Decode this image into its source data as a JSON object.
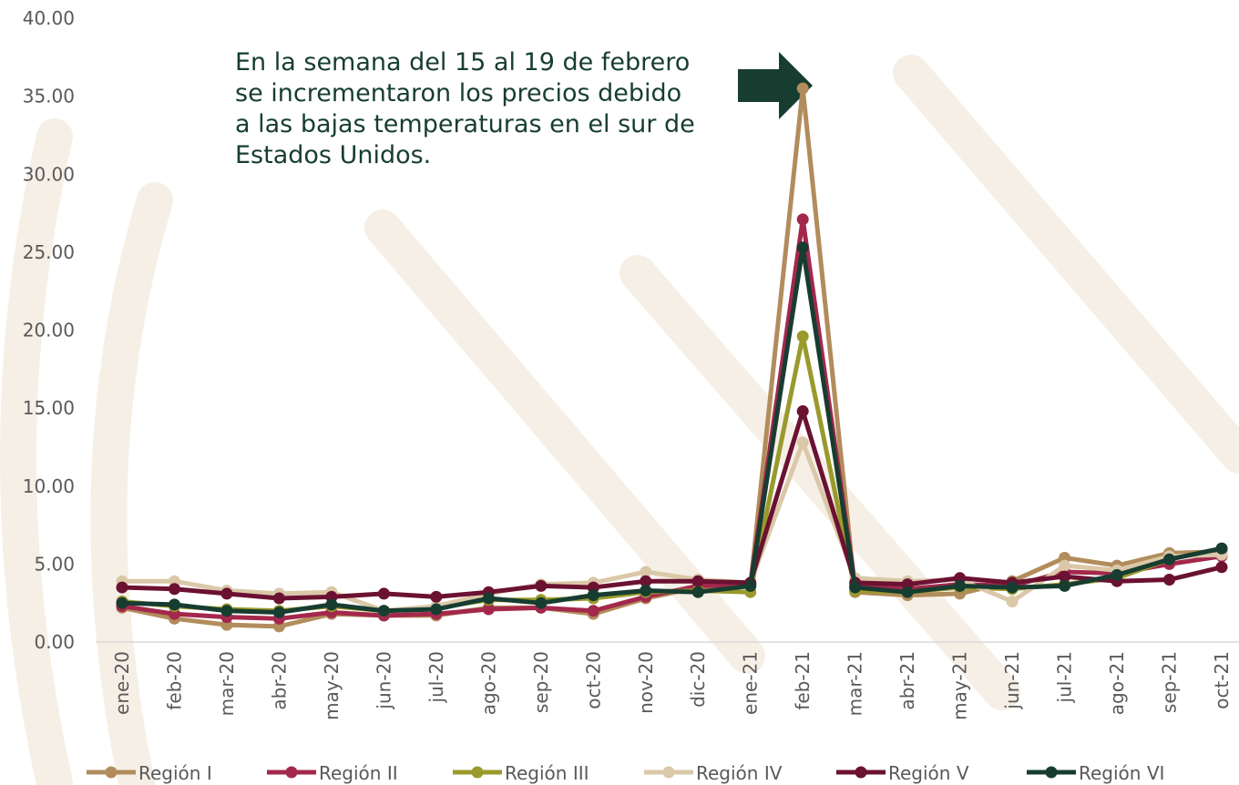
{
  "chart_data": {
    "type": "line",
    "annotation": [
      "En la semana del 15 al 19 de febrero",
      "se incrementaron los precios debido",
      "a las bajas temperaturas en el sur de",
      "Estados Unidos."
    ],
    "categories": [
      "ene-20",
      "feb-20",
      "mar-20",
      "abr-20",
      "may-20",
      "jun-20",
      "jul-20",
      "ago-20",
      "sep-20",
      "oct-20",
      "nov-20",
      "dic-20",
      "ene-21",
      "feb-21",
      "mar-21",
      "abr-21",
      "may-21",
      "jun-21",
      "jul-21",
      "ago-21",
      "sep-21",
      "oct-21"
    ],
    "series": [
      {
        "name": "Región I",
        "color": "#b28c5c",
        "values": [
          2.2,
          1.5,
          1.1,
          1.0,
          1.8,
          1.7,
          1.7,
          2.2,
          2.2,
          1.8,
          2.8,
          3.5,
          3.6,
          35.5,
          3.2,
          3.0,
          3.1,
          3.9,
          5.4,
          4.9,
          5.7,
          5.8
        ]
      },
      {
        "name": "Región II",
        "color": "#a3284c",
        "values": [
          2.3,
          1.8,
          1.6,
          1.5,
          1.9,
          1.7,
          1.8,
          2.1,
          2.2,
          2.0,
          2.9,
          3.6,
          3.7,
          27.1,
          3.6,
          3.4,
          3.7,
          3.6,
          4.5,
          4.4,
          5.0,
          5.5
        ]
      },
      {
        "name": "Región III",
        "color": "#9a9a2c",
        "values": [
          2.6,
          2.3,
          2.1,
          2.0,
          2.3,
          2.0,
          2.2,
          2.7,
          2.7,
          2.8,
          3.2,
          3.3,
          3.2,
          19.6,
          3.3,
          3.2,
          3.5,
          3.4,
          3.7,
          4.1,
          5.3,
          6.0
        ]
      },
      {
        "name": "Región IV",
        "color": "#dac8a8",
        "values": [
          3.9,
          3.9,
          3.3,
          3.1,
          3.2,
          2.0,
          2.3,
          3.1,
          3.7,
          3.8,
          4.5,
          4.0,
          3.8,
          12.8,
          4.1,
          3.9,
          4.0,
          2.6,
          4.9,
          4.6,
          5.5,
          5.6
        ]
      },
      {
        "name": "Región V",
        "color": "#6b1132",
        "values": [
          3.5,
          3.4,
          3.1,
          2.8,
          2.9,
          3.1,
          2.9,
          3.2,
          3.6,
          3.5,
          3.9,
          3.9,
          3.8,
          14.8,
          3.8,
          3.7,
          4.1,
          3.8,
          4.2,
          3.9,
          4.0,
          4.8
        ]
      },
      {
        "name": "Región VI",
        "color": "#173d31",
        "values": [
          2.5,
          2.4,
          2.0,
          1.9,
          2.4,
          2.0,
          2.1,
          2.8,
          2.5,
          3.0,
          3.3,
          3.2,
          3.6,
          25.3,
          3.5,
          3.2,
          3.6,
          3.5,
          3.6,
          4.3,
          5.3,
          6.0
        ]
      }
    ],
    "ylim": [
      0,
      40
    ],
    "yticks": [
      {
        "value": 0,
        "label": "0.00"
      },
      {
        "value": 5,
        "label": "5.00"
      },
      {
        "value": 10,
        "label": "10.00"
      },
      {
        "value": 15,
        "label": "15.00"
      },
      {
        "value": 20,
        "label": "20.00"
      },
      {
        "value": 25,
        "label": "25.00"
      },
      {
        "value": 30,
        "label": "30.00"
      },
      {
        "value": 35,
        "label": "35.00"
      },
      {
        "value": 40,
        "label": "40.00"
      }
    ],
    "legend": "bottom"
  }
}
